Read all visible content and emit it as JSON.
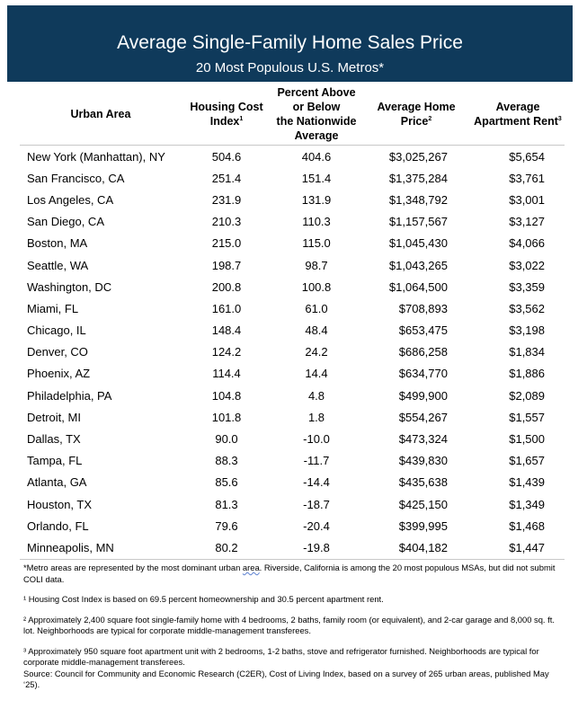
{
  "title": "Average Single-Family Home Sales Price",
  "subtitle": "20 Most Populous U.S. Metros*",
  "columns": {
    "urban_area": "Urban Area",
    "housing_cost_index": "Housing Cost Index",
    "housing_cost_index_sup": "1",
    "percent_line1": "Percent Above",
    "percent_line2": "or Below",
    "percent_line3": "the Nationwide",
    "percent_line4": "Average",
    "home_price": "Average Home Price",
    "home_price_sup": "2",
    "apartment_rent": "Average Apartment Rent",
    "apartment_rent_sup": "3"
  },
  "rows": [
    {
      "area": "New York (Manhattan), NY",
      "index": "504.6",
      "pct": "404.6",
      "price": "$3,025,267",
      "rent": "$5,654"
    },
    {
      "area": "San Francisco, CA",
      "index": "251.4",
      "pct": "151.4",
      "price": "$1,375,284",
      "rent": "$3,761"
    },
    {
      "area": "Los Angeles, CA",
      "index": "231.9",
      "pct": "131.9",
      "price": "$1,348,792",
      "rent": "$3,001"
    },
    {
      "area": "San Diego, CA",
      "index": "210.3",
      "pct": "110.3",
      "price": "$1,157,567",
      "rent": "$3,127"
    },
    {
      "area": "Boston, MA",
      "index": "215.0",
      "pct": "115.0",
      "price": "$1,045,430",
      "rent": "$4,066"
    },
    {
      "area": "Seattle, WA",
      "index": "198.7",
      "pct": "98.7",
      "price": "$1,043,265",
      "rent": "$3,022"
    },
    {
      "area": "Washington, DC",
      "index": "200.8",
      "pct": "100.8",
      "price": "$1,064,500",
      "rent": "$3,359"
    },
    {
      "area": "Miami, FL",
      "index": "161.0",
      "pct": "61.0",
      "price": "$708,893",
      "rent": "$3,562"
    },
    {
      "area": "Chicago, IL",
      "index": "148.4",
      "pct": "48.4",
      "price": "$653,475",
      "rent": "$3,198"
    },
    {
      "area": "Denver, CO",
      "index": "124.2",
      "pct": "24.2",
      "price": "$686,258",
      "rent": "$1,834"
    },
    {
      "area": "Phoenix, AZ",
      "index": "114.4",
      "pct": "14.4",
      "price": "$634,770",
      "rent": "$1,886"
    },
    {
      "area": "Philadelphia, PA",
      "index": "104.8",
      "pct": "4.8",
      "price": "$499,900",
      "rent": "$2,089"
    },
    {
      "area": "Detroit, MI",
      "index": "101.8",
      "pct": "1.8",
      "price": "$554,267",
      "rent": "$1,557"
    },
    {
      "area": "Dallas, TX",
      "index": "90.0",
      "pct": "-10.0",
      "price": "$473,324",
      "rent": "$1,500"
    },
    {
      "area": "Tampa, FL",
      "index": "88.3",
      "pct": "-11.7",
      "price": "$439,830",
      "rent": "$1,657"
    },
    {
      "area": "Atlanta, GA",
      "index": "85.6",
      "pct": "-14.4",
      "price": "$435,638",
      "rent": "$1,439"
    },
    {
      "area": "Houston, TX",
      "index": "81.3",
      "pct": "-18.7",
      "price": "$425,150",
      "rent": "$1,349"
    },
    {
      "area": "Orlando, FL",
      "index": "79.6",
      "pct": "-20.4",
      "price": "$399,995",
      "rent": "$1,468"
    },
    {
      "area": "Minneapolis, MN",
      "index": "80.2",
      "pct": "-19.8",
      "price": "$404,182",
      "rent": "$1,447"
    }
  ],
  "notes": {
    "metro_a": "*Metro areas are represented by the most dominant urban ",
    "metro_u": "area",
    "metro_b": ". Riverside, California is among the 20 most populous MSAs, but did not submit COLI data.",
    "note1": "¹ Housing Cost Index is based on 69.5 percent homeownership and 30.5 percent apartment rent.",
    "note2": "² Approximately 2,400 square foot single-family home with 4 bedrooms, 2 baths, family room (or equivalent), and 2-car garage and 8,000 sq. ft. lot. Neighborhoods are typical for corporate middle-management transferees.",
    "note3": "³ Approximately 950 square foot apartment unit with 2 bedrooms, 1-2 baths, stove and refrigerator furnished. Neighborhoods are typical for corporate middle-management transferees.",
    "source": "Source: Council for Community and Economic Research (C2ER), Cost of Living Index, based on a survey of 265 urban areas, published May ‘25)."
  }
}
